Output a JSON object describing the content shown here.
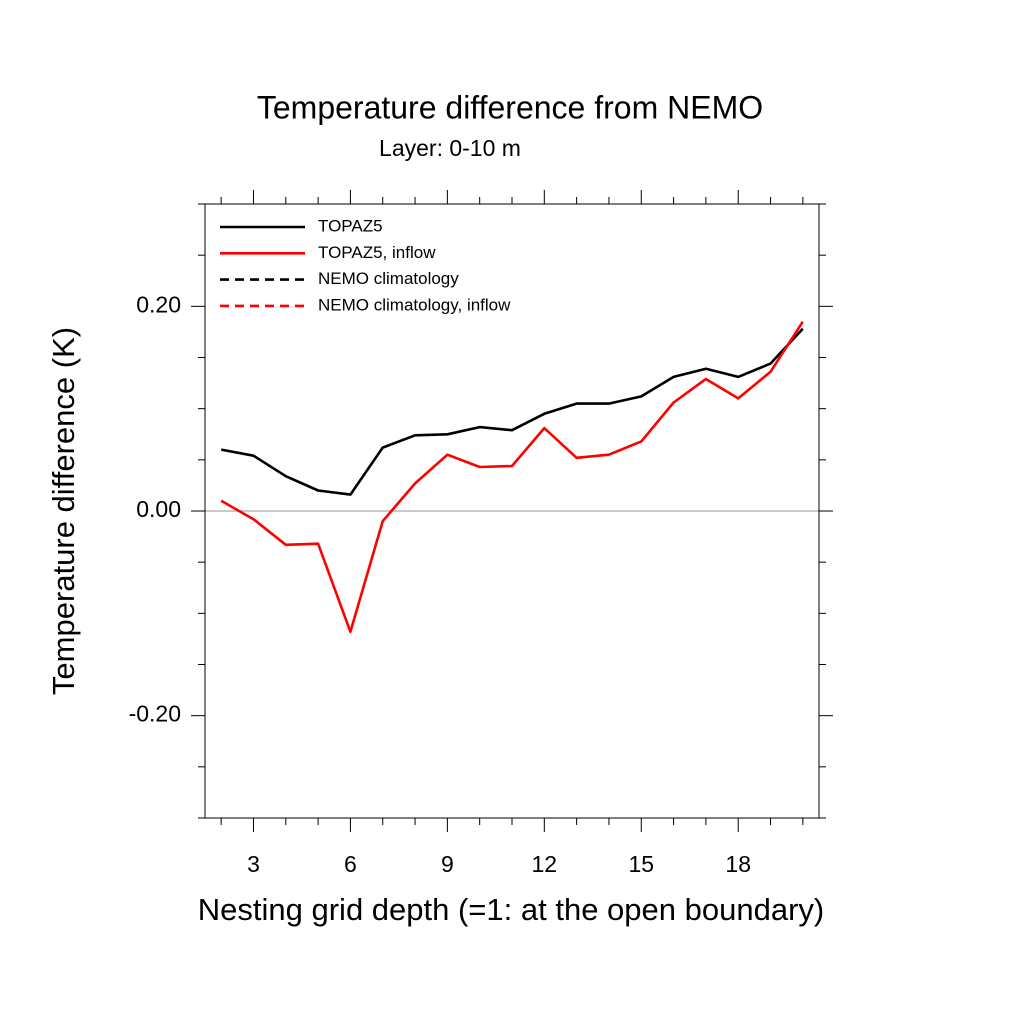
{
  "chart_data": {
    "type": "line",
    "title": "Temperature difference from NEMO",
    "subtitle": "Layer: 0-10 m",
    "x_label": "Nesting grid depth (=1: at the open boundary)",
    "y_label": "Temperature difference (K)",
    "x": [
      2,
      3,
      4,
      5,
      6,
      7,
      8,
      9,
      10,
      11,
      12,
      13,
      14,
      15,
      16,
      17,
      18,
      19,
      20
    ],
    "series": [
      {
        "name": "TOPAZ5",
        "color": "#000000",
        "dash": false,
        "values": [
          0.06,
          0.054,
          0.034,
          0.02,
          0.016,
          0.062,
          0.074,
          0.075,
          0.082,
          0.079,
          0.095,
          0.105,
          0.105,
          0.112,
          0.131,
          0.139,
          0.131,
          0.144,
          0.178
        ]
      },
      {
        "name": "TOPAZ5, inflow",
        "color": "#ff0000",
        "dash": false,
        "values": [
          0.01,
          -0.008,
          -0.033,
          -0.032,
          -0.118,
          -0.01,
          0.027,
          0.055,
          0.043,
          0.044,
          0.081,
          0.052,
          0.055,
          0.068,
          0.106,
          0.129,
          0.11,
          0.136,
          0.185
        ]
      },
      {
        "name": "NEMO climatology",
        "color": "#000000",
        "dash": true,
        "values": [
          null,
          null,
          null,
          null,
          null,
          null,
          null,
          null,
          null,
          null,
          null,
          null,
          null,
          null,
          null,
          null,
          null,
          null,
          null
        ]
      },
      {
        "name": "NEMO climatology, inflow",
        "color": "#ff0000",
        "dash": true,
        "values": [
          null,
          null,
          null,
          null,
          null,
          null,
          null,
          null,
          null,
          null,
          null,
          null,
          null,
          null,
          null,
          null,
          null,
          null,
          null
        ]
      }
    ],
    "xlim": [
      1.5,
      20.5
    ],
    "ylim": [
      -0.3,
      0.3
    ],
    "xticks": [
      3,
      6,
      9,
      12,
      15,
      18
    ],
    "yticks": [
      {
        "value": -0.2,
        "label": "-0.20"
      },
      {
        "value": 0,
        "label": "0.00"
      },
      {
        "value": 0.2,
        "label": "0.20"
      }
    ],
    "xminor_ticks": [
      2,
      4,
      5,
      7,
      8,
      10,
      11,
      13,
      14,
      16,
      17,
      19,
      20
    ],
    "yminor_ticks": [
      -0.3,
      -0.25,
      -0.15,
      -0.1,
      -0.05,
      0.05,
      0.1,
      0.15,
      0.25,
      0.3
    ],
    "hline": 0,
    "legend": "upper left"
  }
}
